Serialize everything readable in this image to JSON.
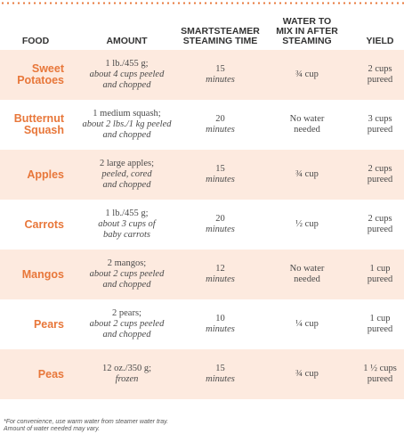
{
  "table": {
    "header": [
      [
        "FOOD"
      ],
      [
        "AMOUNT"
      ],
      [
        "SMARTSTEAMER",
        "STEAMING TIME"
      ],
      [
        "WATER TO",
        "MIX IN AFTER",
        "STEAMING"
      ],
      [
        "YIELD"
      ]
    ],
    "rows": [
      {
        "food": [
          "Sweet",
          "Potatoes"
        ],
        "amount": [
          "1 lb./455 g;",
          "about 4 cups peeled",
          "and chopped"
        ],
        "time": [
          "15",
          "minutes"
        ],
        "water": [
          "¾ cup"
        ],
        "yield": [
          "2 cups",
          "pureed"
        ]
      },
      {
        "food": [
          "Butternut",
          "Squash"
        ],
        "amount": [
          "1 medium squash;",
          "about 2 lbs./1 kg peeled",
          "and chopped"
        ],
        "time": [
          "20",
          "minutes"
        ],
        "water": [
          "No water",
          "needed"
        ],
        "yield": [
          "3 cups",
          "pureed"
        ]
      },
      {
        "food": [
          "Apples"
        ],
        "amount": [
          "2 large apples;",
          "peeled, cored",
          "and chopped"
        ],
        "time": [
          "15",
          "minutes"
        ],
        "water": [
          "¾ cup"
        ],
        "yield": [
          "2 cups",
          "pureed"
        ]
      },
      {
        "food": [
          "Carrots"
        ],
        "amount": [
          "1 lb./455 g;",
          "about 3 cups of",
          "baby carrots"
        ],
        "time": [
          "20",
          "minutes"
        ],
        "water": [
          "½ cup"
        ],
        "yield": [
          "2 cups",
          "pureed"
        ]
      },
      {
        "food": [
          "Mangos"
        ],
        "amount": [
          "2 mangos;",
          "about 2 cups peeled",
          "and chopped"
        ],
        "time": [
          "12",
          "minutes"
        ],
        "water": [
          "No water",
          "needed"
        ],
        "yield": [
          "1 cup",
          "pureed"
        ]
      },
      {
        "food": [
          "Pears"
        ],
        "amount": [
          "2 pears;",
          "about 2 cups peeled",
          "and chopped"
        ],
        "time": [
          "10",
          "minutes"
        ],
        "water": [
          "¼ cup"
        ],
        "yield": [
          "1 cup",
          "pureed"
        ]
      },
      {
        "food": [
          "Peas"
        ],
        "amount": [
          "12 oz./350 g;",
          "frozen"
        ],
        "time": [
          "15",
          "minutes"
        ],
        "water": [
          "¾ cup"
        ],
        "yield": [
          "1 ½ cups",
          "pureed"
        ]
      }
    ]
  },
  "footnote": [
    "*For convenience, use warm water from steamer water tray.",
    "Amount of water needed may vary."
  ]
}
